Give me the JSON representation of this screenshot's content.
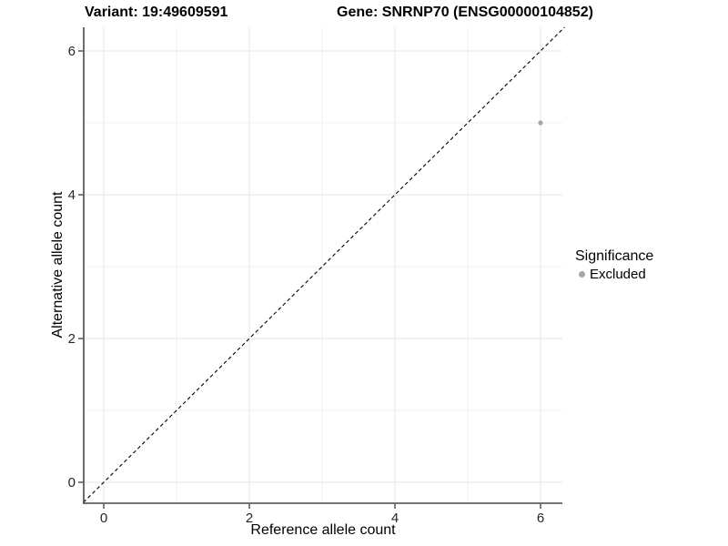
{
  "chart_data": {
    "type": "scatter",
    "title_left": "Variant: 19:49609591",
    "title_right": "Gene: SNRNP70 (ENSG00000104852)",
    "xlabel": "Reference allele count",
    "ylabel": "Alternative allele count",
    "xlim": [
      -0.28,
      6.33
    ],
    "ylim": [
      -0.28,
      6.33
    ],
    "x_ticks": [
      0,
      2,
      4,
      6
    ],
    "y_ticks": [
      0,
      2,
      4,
      6
    ],
    "x_minor_ticks": [
      1,
      3,
      5
    ],
    "y_minor_ticks": [
      1,
      3,
      5
    ],
    "grid": true,
    "reference_line": {
      "type": "identity",
      "style": "dashed",
      "color": "#000000"
    },
    "points": [
      {
        "x": 6,
        "y": 5,
        "series": "Excluded"
      }
    ],
    "series_colors": {
      "Excluded": "#a6a6a6"
    },
    "legend": {
      "title": "Significance",
      "position": "right",
      "items": [
        {
          "label": "Excluded",
          "color": "#a6a6a6",
          "marker": "circle"
        }
      ]
    },
    "style_colors": {
      "background": "#ffffff",
      "grid_major": "#e6e6e6",
      "grid_minor": "#f2f2f2",
      "axis_line": "#474747",
      "tick_text": "#262626"
    }
  }
}
